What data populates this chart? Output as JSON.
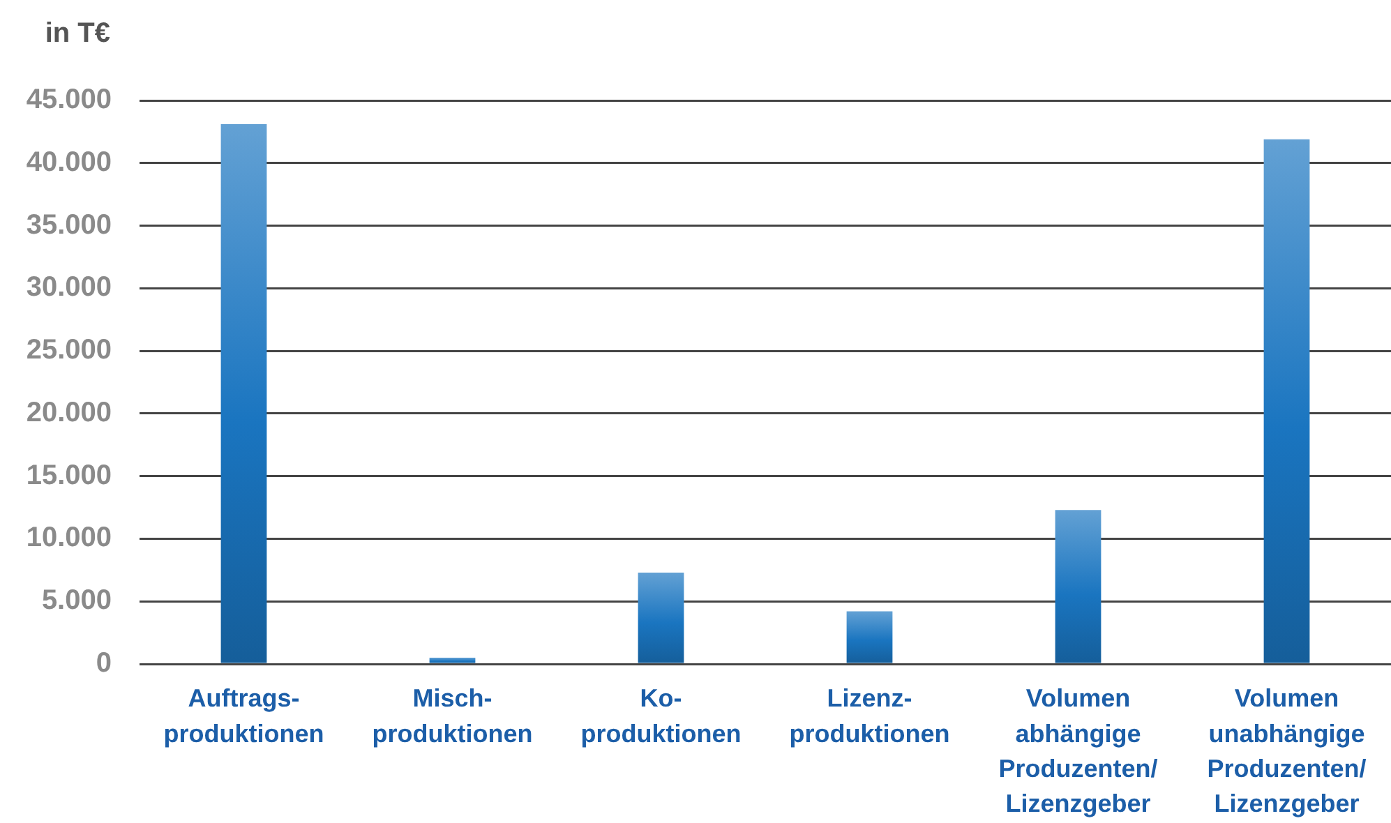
{
  "chart_data": {
    "type": "bar",
    "ylabel": "in T€",
    "categories": [
      "Auftrags-\nproduktionen",
      "Misch-\nproduktionen",
      "Ko-\nproduktionen",
      "Lizenz-\nproduktionen",
      "Volumen\nabhängige\nProduzenten/\nLizenzgeber",
      "Volumen\nunabhängige\nProduzenten/\nLizenzgeber"
    ],
    "values": [
      43100,
      500,
      7300,
      4200,
      12300,
      41900
    ],
    "color": "#1a75c0",
    "ylim": [
      0,
      45000
    ],
    "yticks": [
      0,
      {
        "value": 5000,
        "label": "5.000"
      },
      {
        "value": 10000,
        "label": "10.000"
      },
      {
        "value": 15000,
        "label": "15.000"
      },
      {
        "value": 20000,
        "label": "20.000"
      },
      {
        "value": 25000,
        "label": "25.000"
      },
      {
        "value": 30000,
        "label": "30.000"
      },
      {
        "value": 35000,
        "label": "35.000"
      },
      {
        "value": 40000,
        "label": "40.000"
      },
      {
        "value": 45000,
        "label": "45.000"
      }
    ],
    "grid": "y"
  }
}
